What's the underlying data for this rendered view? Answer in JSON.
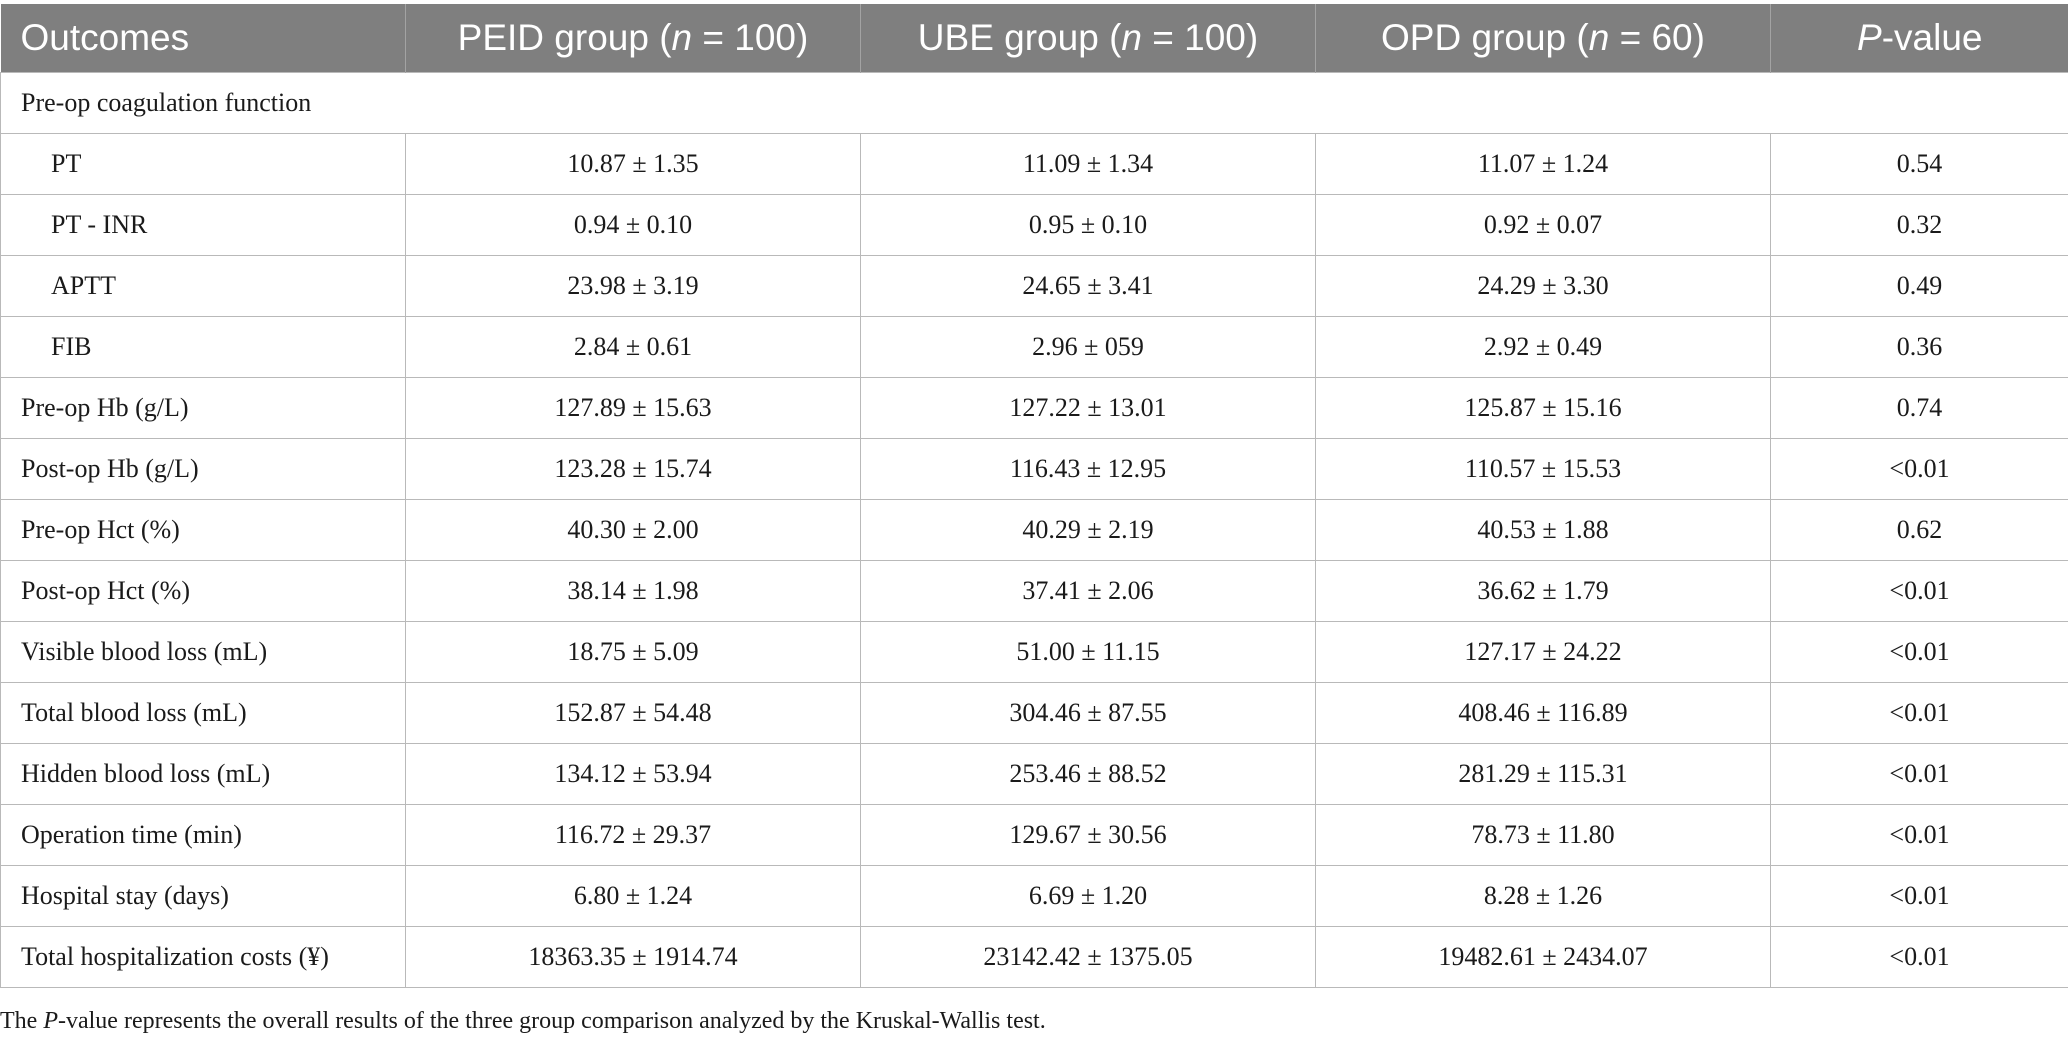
{
  "table": {
    "headers": {
      "outcomes": "Outcomes",
      "peid": {
        "pre": "PEID group (",
        "n": "n",
        "post": " = 100)"
      },
      "ube": {
        "pre": "UBE group (",
        "n": "n",
        "post": " = 100)"
      },
      "opd": {
        "pre": "OPD group (",
        "n": "n",
        "post": " = 60)"
      },
      "pvalue": {
        "p": "P",
        "post": "-value"
      }
    },
    "section_label": "Pre-op coagulation function",
    "coag_rows": [
      {
        "label": "PT",
        "peid": "10.87 ± 1.35",
        "ube": "11.09 ± 1.34",
        "opd": "11.07 ± 1.24",
        "p": "0.54"
      },
      {
        "label": "PT - INR",
        "peid": "0.94 ± 0.10",
        "ube": "0.95 ± 0.10",
        "opd": "0.92 ± 0.07",
        "p": "0.32"
      },
      {
        "label": "APTT",
        "peid": "23.98 ± 3.19",
        "ube": "24.65 ± 3.41",
        "opd": "24.29 ± 3.30",
        "p": "0.49"
      },
      {
        "label": "FIB",
        "peid": "2.84 ± 0.61",
        "ube": "2.96 ± 059",
        "opd": "2.92 ± 0.49",
        "p": "0.36"
      }
    ],
    "rows": [
      {
        "label": "Pre-op Hb (g/L)",
        "peid": "127.89 ± 15.63",
        "ube": "127.22 ± 13.01",
        "opd": "125.87 ± 15.16",
        "p": "0.74"
      },
      {
        "label": "Post-op Hb (g/L)",
        "peid": "123.28 ± 15.74",
        "ube": "116.43 ± 12.95",
        "opd": "110.57 ± 15.53",
        "p": "<0.01"
      },
      {
        "label": "Pre-op Hct (%)",
        "peid": "40.30 ± 2.00",
        "ube": "40.29 ± 2.19",
        "opd": "40.53 ± 1.88",
        "p": "0.62"
      },
      {
        "label": "Post-op Hct (%)",
        "peid": "38.14 ± 1.98",
        "ube": "37.41 ± 2.06",
        "opd": "36.62 ± 1.79",
        "p": "<0.01"
      },
      {
        "label": "Visible blood loss (mL)",
        "peid": "18.75 ± 5.09",
        "ube": "51.00 ± 11.15",
        "opd": "127.17 ± 24.22",
        "p": "<0.01"
      },
      {
        "label": "Total blood loss (mL)",
        "peid": "152.87 ± 54.48",
        "ube": "304.46 ± 87.55",
        "opd": "408.46 ± 116.89",
        "p": "<0.01"
      },
      {
        "label": "Hidden blood loss (mL)",
        "peid": "134.12 ± 53.94",
        "ube": "253.46 ± 88.52",
        "opd": "281.29 ± 115.31",
        "p": "<0.01"
      },
      {
        "label": "Operation time (min)",
        "peid": "116.72 ± 29.37",
        "ube": "129.67 ± 30.56",
        "opd": "78.73 ± 11.80",
        "p": "<0.01"
      },
      {
        "label": "Hospital stay (days)",
        "peid": "6.80 ± 1.24",
        "ube": "6.69 ± 1.20",
        "opd": "8.28 ± 1.26",
        "p": "<0.01"
      },
      {
        "label": "Total hospitalization costs (¥)",
        "peid": "18363.35 ± 1914.74",
        "ube": "23142.42 ± 1375.05",
        "opd": "19482.61 ± 2434.07",
        "p": "<0.01"
      }
    ]
  },
  "footnote": {
    "pre": "The ",
    "p": "P",
    "post": "-value represents the overall results of the three group comparison analyzed by the Kruskal-Wallis test."
  },
  "colors": {
    "header_bg": "#7f7f7f",
    "header_text": "#ffffff",
    "grid": "#b9b9b9"
  }
}
